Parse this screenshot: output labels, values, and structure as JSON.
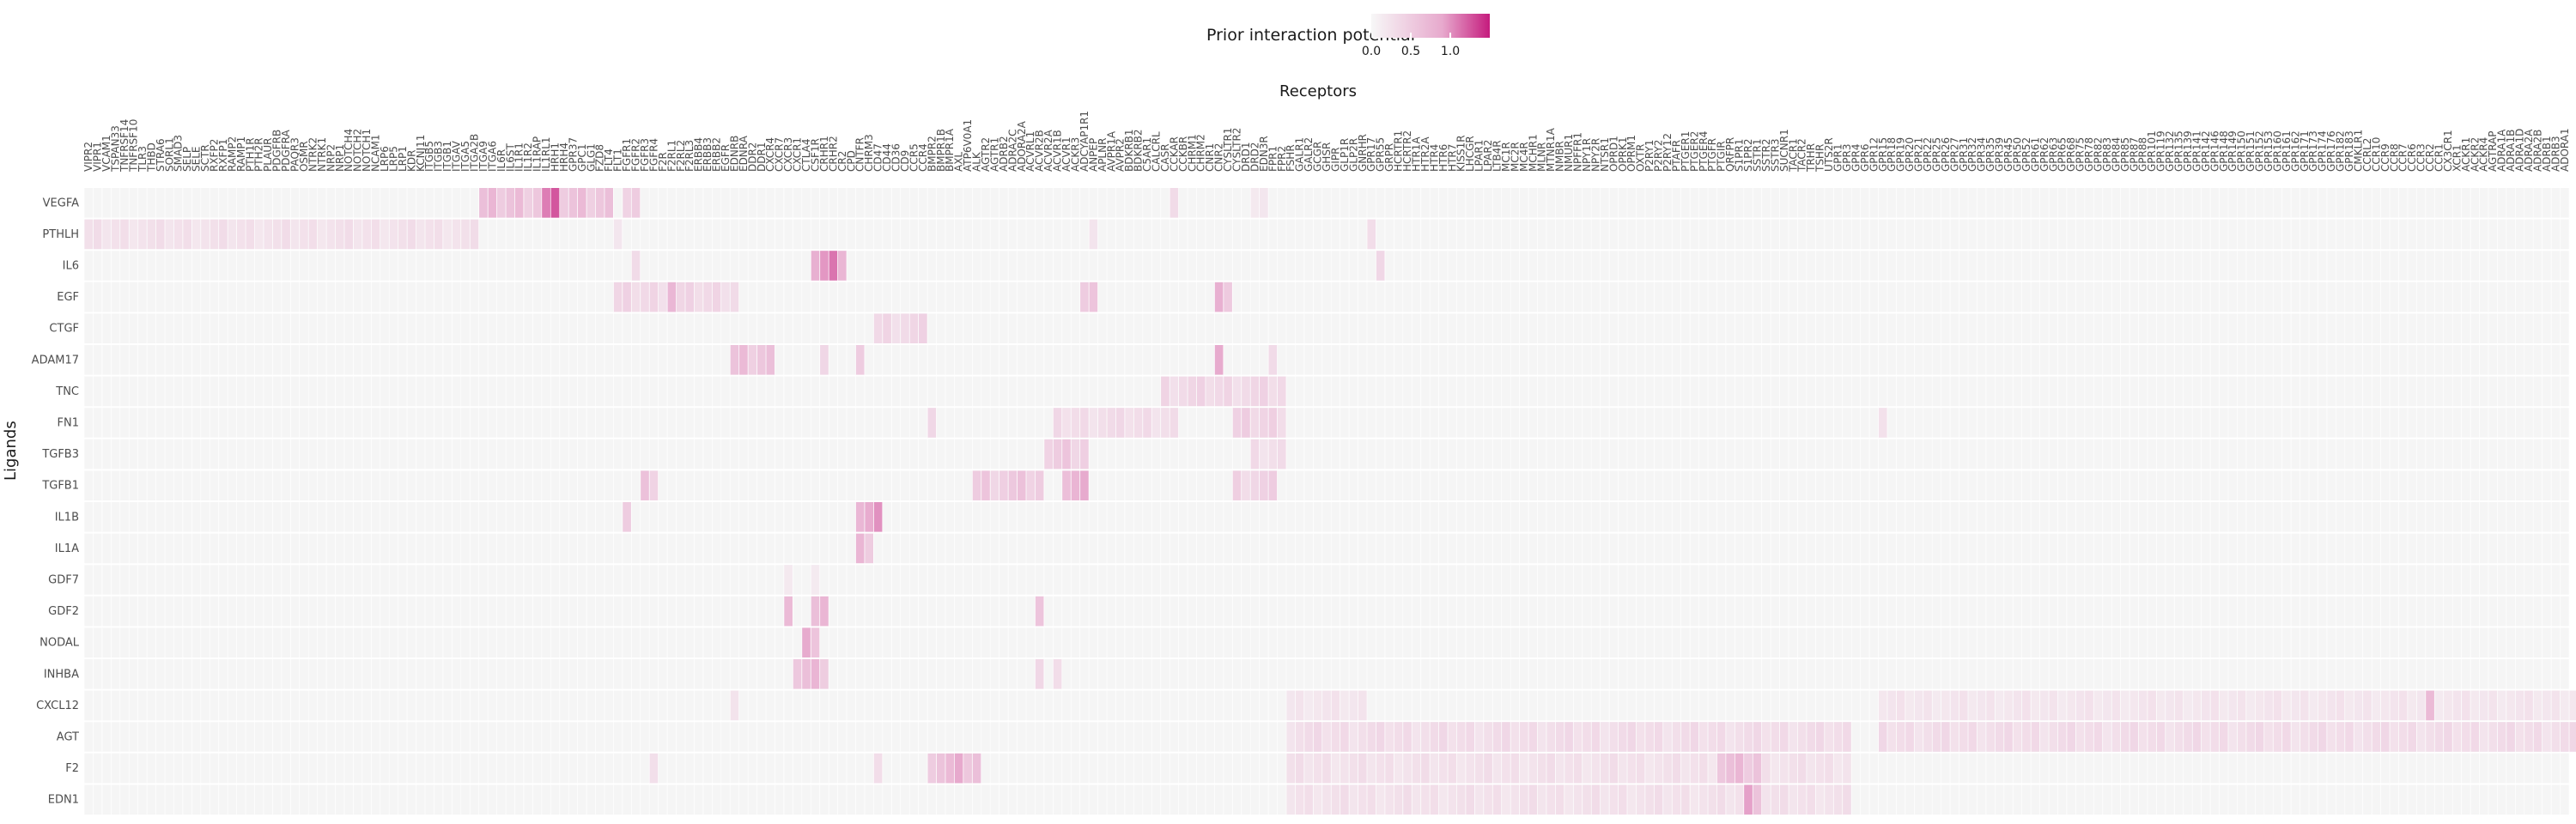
{
  "chart_data": {
    "type": "heatmap",
    "title": "",
    "xlabel": "Receptors",
    "ylabel": "Ligands",
    "legend": {
      "title": "Prior interaction potential",
      "ticks": [
        "0.0",
        "0.5",
        "1.0"
      ],
      "range": [
        0,
        1.5
      ],
      "low_color": "#f7f7f7",
      "high_color": "#c51b7d",
      "placement": "top"
    },
    "colors": {
      "empty": "#f5f5f5",
      "grid": "#ffffff",
      "mid": "#e7a9cd"
    },
    "ligands": [
      "VEGFA",
      "PTHLH",
      "IL6",
      "EGF",
      "CTGF",
      "ADAM17",
      "TNC",
      "FN1",
      "TGFB3",
      "TGFB1",
      "IL1B",
      "IL1A",
      "GDF7",
      "GDF2",
      "NODAL",
      "INHBA",
      "CXCL12",
      "AGT",
      "F2",
      "EDN1"
    ],
    "receptors": [
      "VIPR2",
      "VIPR1",
      "VCAM1",
      "TSPAN33",
      "TNFRSF14",
      "TNFRSF10",
      "TLR3",
      "THBD",
      "STRA6",
      "SORL1",
      "SMAD3",
      "SELP",
      "SELE",
      "SCTR",
      "RXFP2",
      "RXFP1",
      "RAMP2",
      "RAMP1",
      "PTH1R",
      "PTH2R",
      "PLAUR",
      "PDGFRB",
      "PDGFRA",
      "PAQR3",
      "OSMR",
      "NTRK2",
      "NTRK1",
      "NRP2",
      "NRP1",
      "NOTCH4",
      "NOTCH2",
      "NOTCH1",
      "NCAM1",
      "LRP6",
      "LRP5",
      "LRP1",
      "KDR",
      "KCNJ11",
      "ITGB5",
      "ITGB3",
      "ITGB1",
      "ITGAV",
      "ITGA5",
      "ITGA2B",
      "ITGA9",
      "ITGA6",
      "IL6R",
      "IL6ST",
      "IL1R1",
      "IL1R2",
      "IL1RAP",
      "IL1RL1",
      "HRH1",
      "HRH4",
      "GPR37",
      "GPC1",
      "GLG1",
      "FZD8",
      "FLT4",
      "FLT1",
      "FGFR1",
      "FGFR2",
      "FGFR3",
      "FGFR4",
      "F2R",
      "F2RL1",
      "F2RL2",
      "F2RL3",
      "ERBB4",
      "ERBB3",
      "ERBB2",
      "EGFR",
      "EDNRB",
      "EDNRA",
      "DDR2",
      "DDR1",
      "CXCR4",
      "CXCR7",
      "CXCR3",
      "CXCR1",
      "CTLA4",
      "CSF1R",
      "CRHR1",
      "CRHR2",
      "CR2",
      "CPD",
      "CNTFR",
      "CHRM3",
      "CD47",
      "CD44",
      "CD36",
      "CD9",
      "CCR5",
      "CCR4",
      "BMPR2",
      "BMPR1B",
      "BMPR1A",
      "AXL",
      "ATP6V0A1",
      "ALK",
      "AGTR2",
      "AGTR1",
      "ADRB2",
      "ADRA2C",
      "ADORA2A",
      "ACVRL1",
      "ACVR2B",
      "ACVR2A",
      "ACVR1B",
      "ACVR1",
      "ACKR3",
      "ADCYAP1R1",
      "ANPEP",
      "APLNR",
      "AVPR1A",
      "AVPR2",
      "BDKRB1",
      "BDKRB2",
      "C5AR1",
      "CALCRL",
      "CASR",
      "CCKAR",
      "CCKBR",
      "CHRM1",
      "CHRM2",
      "CNR1",
      "CNR2",
      "CYSLTR1",
      "CYSLTR2",
      "DRD1",
      "DRD2",
      "EDN3R",
      "FPR1",
      "FPR2",
      "FSHR",
      "GALR1",
      "GALR2",
      "GCGR",
      "GHSR",
      "GIPR",
      "GLP1R",
      "GLP2R",
      "GNRHR",
      "GPR17",
      "GPR55",
      "GRPR",
      "HCRTR1",
      "HCRTR2",
      "HTR1A",
      "HTR2A",
      "HTR4",
      "HTR6",
      "HTR7",
      "KISS1R",
      "LHCGR",
      "LPAR1",
      "LPAR2",
      "LTB4R",
      "MC1R",
      "MC2R",
      "MC4R",
      "MCHR1",
      "MLNR",
      "MTNR1A",
      "NMBR",
      "NMUR1",
      "NPFFR1",
      "NPY1R",
      "NPY2R",
      "NTSR1",
      "OPRD1",
      "OPRK1",
      "OPRM1",
      "OXTR",
      "P2RY1",
      "P2RY2",
      "P2RY12",
      "PTAFR",
      "PTGER1",
      "PTGER2",
      "PTGER4",
      "PTGFR",
      "PTGIR",
      "QRFPR",
      "S1PR1",
      "S1PR2",
      "SSTR1",
      "SSTR2",
      "SSTR3",
      "SUCNR1",
      "TACR1",
      "TACR2",
      "TRHR",
      "TSHR",
      "UTS2R",
      "GPR1",
      "GPR3",
      "GPR4",
      "GPR6",
      "GPR12",
      "GPR15",
      "GPR18",
      "GPR19",
      "GPR20",
      "GPR21",
      "GPR22",
      "GPR25",
      "GPR26",
      "GPR27",
      "GPR31",
      "GPR32",
      "GPR34",
      "GPR35",
      "GPR39",
      "GPR45",
      "GPR50",
      "GPR52",
      "GPR61",
      "GPR62",
      "GPR63",
      "GPR65",
      "GPR68",
      "GPR75",
      "GPR78",
      "GPR82",
      "GPR83",
      "GPR84",
      "GPR85",
      "GPR87",
      "GPR88",
      "GPR101",
      "GPR119",
      "GPR132",
      "GPR135",
      "GPR139",
      "GPR141",
      "GPR142",
      "GPR146",
      "GPR148",
      "GPR149",
      "GPR150",
      "GPR151",
      "GPR152",
      "GPR153",
      "GPR160",
      "GPR161",
      "GPR162",
      "GPR171",
      "GPR173",
      "GPR174",
      "GPR176",
      "GPR182",
      "GPR183",
      "CMKLR1",
      "CCRL2",
      "CCR10",
      "CCR9",
      "CCR8",
      "CCR7",
      "CCR6",
      "CCR3",
      "CCR2",
      "CCR1",
      "CX3CR1",
      "XCR1",
      "ACKR1",
      "ACKR2",
      "ACKR4",
      "AGTRAP",
      "ADRA1A",
      "ADRA1B",
      "ADRA1D",
      "ADRA2A",
      "ADRA2B",
      "ADRB1",
      "ADRB3",
      "ADORA1"
    ],
    "cells": [
      {
        "ligand": "VEGFA",
        "receptor_range": [
          44,
          58
        ],
        "value": 0.6
      },
      {
        "ligand": "VEGFA",
        "receptor_range": [
          51,
          52
        ],
        "value": 1.0
      },
      {
        "ligand": "VEGFA",
        "receptor_range": [
          60,
          61
        ],
        "value": 0.5
      },
      {
        "ligand": "VEGFA",
        "receptor_range": [
          121,
          121
        ],
        "value": 0.3
      },
      {
        "ligand": "VEGFA",
        "receptor_range": [
          130,
          131
        ],
        "value": 0.2
      },
      {
        "ligand": "PTHLH",
        "receptor_range": [
          0,
          43
        ],
        "value": 0.25
      },
      {
        "ligand": "PTHLH",
        "receptor_range": [
          59,
          59
        ],
        "value": 0.2
      },
      {
        "ligand": "PTHLH",
        "receptor_range": [
          112,
          112
        ],
        "value": 0.2
      },
      {
        "ligand": "PTHLH",
        "receptor_range": [
          143,
          143
        ],
        "value": 0.3
      },
      {
        "ligand": "IL6",
        "receptor_range": [
          61,
          61
        ],
        "value": 0.3
      },
      {
        "ligand": "IL6",
        "receptor_range": [
          81,
          84
        ],
        "value": 0.9
      },
      {
        "ligand": "IL6",
        "receptor_range": [
          144,
          144
        ],
        "value": 0.4
      },
      {
        "ligand": "EGF",
        "receptor_range": [
          59,
          72
        ],
        "value": 0.35
      },
      {
        "ligand": "EGF",
        "receptor_range": [
          65,
          65
        ],
        "value": 0.8
      },
      {
        "ligand": "EGF",
        "receptor_range": [
          111,
          112
        ],
        "value": 0.5
      },
      {
        "ligand": "EGF",
        "receptor_range": [
          126,
          127
        ],
        "value": 0.7
      },
      {
        "ligand": "CTGF",
        "receptor_range": [
          88,
          93
        ],
        "value": 0.35
      },
      {
        "ligand": "ADAM17",
        "receptor_range": [
          72,
          76
        ],
        "value": 0.6
      },
      {
        "ligand": "ADAM17",
        "receptor_range": [
          82,
          82
        ],
        "value": 0.4
      },
      {
        "ligand": "ADAM17",
        "receptor_range": [
          86,
          86
        ],
        "value": 0.5
      },
      {
        "ligand": "ADAM17",
        "receptor_range": [
          126,
          126
        ],
        "value": 0.7
      },
      {
        "ligand": "ADAM17",
        "receptor_range": [
          132,
          132
        ],
        "value": 0.3
      },
      {
        "ligand": "TNC",
        "receptor_range": [
          120,
          133
        ],
        "value": 0.35
      },
      {
        "ligand": "FN1",
        "receptor_range": [
          94,
          94
        ],
        "value": 0.3
      },
      {
        "ligand": "FN1",
        "receptor_range": [
          108,
          121
        ],
        "value": 0.3
      },
      {
        "ligand": "FN1",
        "receptor_range": [
          128,
          133
        ],
        "value": 0.4
      },
      {
        "ligand": "FN1",
        "receptor_range": [
          200,
          200
        ],
        "value": 0.3
      },
      {
        "ligand": "TGFB3",
        "receptor_range": [
          107,
          111
        ],
        "value": 0.5
      },
      {
        "ligand": "TGFB3",
        "receptor_range": [
          130,
          133
        ],
        "value": 0.3
      },
      {
        "ligand": "TGFB1",
        "receptor_range": [
          62,
          63
        ],
        "value": 0.5
      },
      {
        "ligand": "TGFB1",
        "receptor_range": [
          99,
          106
        ],
        "value": 0.5
      },
      {
        "ligand": "TGFB1",
        "receptor_range": [
          109,
          111
        ],
        "value": 0.7
      },
      {
        "ligand": "TGFB1",
        "receptor_range": [
          128,
          132
        ],
        "value": 0.4
      },
      {
        "ligand": "IL1B",
        "receptor_range": [
          60,
          60
        ],
        "value": 0.4
      },
      {
        "ligand": "IL1B",
        "receptor_range": [
          86,
          88
        ],
        "value": 0.8
      },
      {
        "ligand": "IL1A",
        "receptor_range": [
          86,
          87
        ],
        "value": 0.6
      },
      {
        "ligand": "GDF7",
        "receptor_range": [
          78,
          78
        ],
        "value": 0.2
      },
      {
        "ligand": "GDF7",
        "receptor_range": [
          81,
          81
        ],
        "value": 0.2
      },
      {
        "ligand": "GDF2",
        "receptor_range": [
          78,
          78
        ],
        "value": 0.6
      },
      {
        "ligand": "GDF2",
        "receptor_range": [
          81,
          82
        ],
        "value": 0.6
      },
      {
        "ligand": "GDF2",
        "receptor_range": [
          106,
          106
        ],
        "value": 0.5
      },
      {
        "ligand": "NODAL",
        "receptor_range": [
          80,
          81
        ],
        "value": 0.7
      },
      {
        "ligand": "INHBA",
        "receptor_range": [
          79,
          82
        ],
        "value": 0.65
      },
      {
        "ligand": "INHBA",
        "receptor_range": [
          106,
          106
        ],
        "value": 0.3
      },
      {
        "ligand": "INHBA",
        "receptor_range": [
          108,
          108
        ],
        "value": 0.3
      },
      {
        "ligand": "CXCL12",
        "receptor_range": [
          72,
          72
        ],
        "value": 0.2
      },
      {
        "ligand": "CXCL12",
        "receptor_range": [
          134,
          142
        ],
        "value": 0.2
      },
      {
        "ligand": "CXCL12",
        "receptor_range": [
          200,
          279
        ],
        "value": 0.2
      },
      {
        "ligand": "CXCL12",
        "receptor_range": [
          261,
          261
        ],
        "value": 0.6
      },
      {
        "ligand": "CXCL12",
        "receptor_range": [
          279,
          279
        ],
        "value": 0.5
      },
      {
        "ligand": "AGT",
        "receptor_range": [
          134,
          196
        ],
        "value": 0.3
      },
      {
        "ligand": "AGT",
        "receptor_range": [
          200,
          279
        ],
        "value": 0.3
      },
      {
        "ligand": "F2",
        "receptor_range": [
          63,
          63
        ],
        "value": 0.3
      },
      {
        "ligand": "F2",
        "receptor_range": [
          88,
          88
        ],
        "value": 0.3
      },
      {
        "ligand": "F2",
        "receptor_range": [
          94,
          99
        ],
        "value": 0.6
      },
      {
        "ligand": "F2",
        "receptor_range": [
          97,
          97
        ],
        "value": 1.2
      },
      {
        "ligand": "F2",
        "receptor_range": [
          134,
          196
        ],
        "value": 0.25
      },
      {
        "ligand": "F2",
        "receptor_range": [
          182,
          186
        ],
        "value": 0.6
      },
      {
        "ligand": "EDN1",
        "receptor_range": [
          134,
          196
        ],
        "value": 0.25
      },
      {
        "ligand": "EDN1",
        "receptor_range": [
          185,
          186
        ],
        "value": 0.8
      }
    ]
  }
}
